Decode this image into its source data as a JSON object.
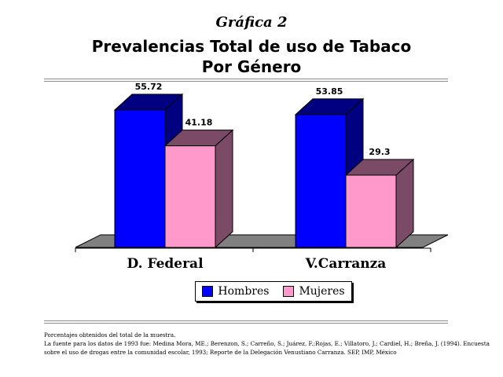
{
  "header": {
    "caption": "Gráfica 2",
    "title_line1": "Prevalencias Total de uso de Tabaco",
    "title_line2": "Por Género"
  },
  "chart_data": {
    "type": "bar",
    "three_d": true,
    "categories": [
      "D. Federal",
      "V.Carranza"
    ],
    "series": [
      {
        "name": "Hombres",
        "values": [
          55.72,
          53.85
        ],
        "color": "#0000ff",
        "side_color": "#000080"
      },
      {
        "name": "Mujeres",
        "values": [
          41.18,
          29.3
        ],
        "color": "#ff99cc",
        "side_color": "#7a4a66"
      }
    ],
    "value_labels": [
      "55.72",
      "41.18",
      "53.85",
      "29.3"
    ],
    "ylim": [
      0,
      60
    ],
    "grid": false,
    "legend_position": "bottom",
    "floor_color": "#808080"
  },
  "legend": {
    "items": [
      {
        "label": "Hombres",
        "color": "#0000ff"
      },
      {
        "label": "Mujeres",
        "color": "#ff99cc"
      }
    ]
  },
  "footnotes": {
    "line1": "Porcentajes obtenidos del total de la muestra.",
    "line2": "La fuente para los datos de 1993 fue: Medina Mora, ME.; Berenzon, S.; Carreño, S.; Juárez, F.;Rojas, E.; Villatoro, J.; Cardiel, H.; Breña, J. (1994). Encuesta",
    "line3": "sobre el uso de drogas entre la comunidad escolar, 1993; Reporte de la Delegación Venustiano Carranza. SEP, IMP, México"
  }
}
